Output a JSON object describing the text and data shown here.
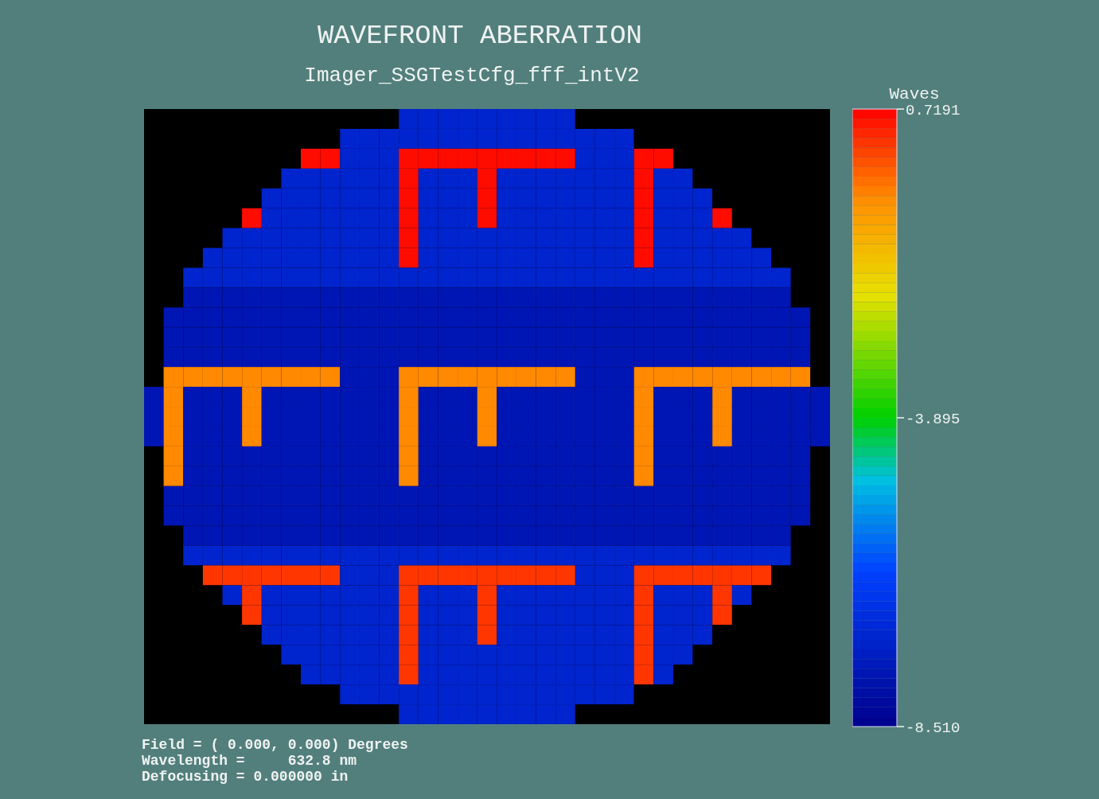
{
  "chart_data": {
    "type": "heatmap",
    "title": "WAVEFRONT ABERRATION",
    "subtitle": "Imager_SSGTestCfg_fff_intV2",
    "clabel": "Waves",
    "annotations": [
      "Field = ( 0.000, 0.000) Degrees",
      "Wavelength =     632.8 nm",
      "Defocusing = 0.000000 in"
    ],
    "clim": [
      -8.51,
      0.7191
    ],
    "cticks": [
      {
        "value": 0.7191,
        "label": "0.7191"
      },
      {
        "value": -3.895,
        "label": "-3.895"
      },
      {
        "value": -8.51,
        "label": "-8.510"
      }
    ],
    "categories": [
      null,
      null,
      null,
      null,
      null,
      null,
      null,
      null,
      null,
      null,
      null,
      null,
      null,
      null,
      null,
      null,
      null,
      null,
      null,
      null,
      null,
      null,
      null,
      null,
      null,
      null,
      null,
      null,
      null,
      null,
      null,
      null,
      null,
      null,
      null
    ],
    "y_categories": [
      null,
      null,
      null,
      null,
      null,
      null,
      null,
      null,
      null,
      null,
      null,
      null,
      null,
      null,
      null,
      null,
      null,
      null,
      null,
      null,
      null,
      null,
      null,
      null,
      null,
      null,
      null,
      null,
      null,
      null,
      null
    ],
    "cells": [
      [
        null,
        null,
        null,
        null,
        null,
        null,
        null,
        null,
        null,
        null,
        null,
        null,
        null,
        -7.2,
        -7.2,
        -7.2,
        -7.2,
        -7.2,
        -7.2,
        -7.2,
        -7.2,
        -7.2,
        null,
        null,
        null,
        null,
        null,
        null,
        null,
        null,
        null,
        null,
        null,
        null,
        null
      ],
      [
        null,
        null,
        null,
        null,
        null,
        null,
        null,
        null,
        null,
        null,
        -7.2,
        -7.2,
        -7.2,
        -7.2,
        -7.2,
        -7.2,
        -7.2,
        -7.2,
        -7.2,
        -7.2,
        -7.2,
        -7.2,
        -7.2,
        -7.2,
        -7.2,
        null,
        null,
        null,
        null,
        null,
        null,
        null,
        null,
        null,
        null
      ],
      [
        null,
        null,
        null,
        null,
        null,
        null,
        null,
        null,
        0.6,
        0.6,
        -7.2,
        -7.2,
        -7.2,
        0.6,
        0.6,
        0.6,
        0.6,
        0.6,
        0.6,
        0.6,
        0.6,
        0.6,
        -7.2,
        -7.2,
        -7.2,
        0.6,
        0.6,
        null,
        null,
        null,
        null,
        null,
        null,
        null,
        null
      ],
      [
        null,
        null,
        null,
        null,
        null,
        null,
        null,
        -7.2,
        -7.2,
        -7.2,
        -7.2,
        -7.2,
        -7.2,
        0.6,
        -7.2,
        -7.2,
        -7.2,
        0.6,
        -7.2,
        -7.2,
        -7.2,
        -7.2,
        -7.2,
        -7.2,
        -7.2,
        0.6,
        -7.2,
        -7.2,
        null,
        null,
        null,
        null,
        null,
        null,
        null
      ],
      [
        null,
        null,
        null,
        null,
        null,
        null,
        -7.2,
        -7.2,
        -7.2,
        -7.2,
        -7.2,
        -7.2,
        -7.2,
        0.6,
        -7.2,
        -7.2,
        -7.2,
        0.6,
        -7.2,
        -7.2,
        -7.2,
        -7.2,
        -7.2,
        -7.2,
        -7.2,
        0.6,
        -7.2,
        -7.2,
        -7.2,
        null,
        null,
        null,
        null,
        null,
        null
      ],
      [
        null,
        null,
        null,
        null,
        null,
        0.6,
        -7.2,
        -7.2,
        -7.2,
        -7.2,
        -7.2,
        -7.2,
        -7.2,
        0.6,
        -7.2,
        -7.2,
        -7.2,
        0.6,
        -7.2,
        -7.2,
        -7.2,
        -7.2,
        -7.2,
        -7.2,
        -7.2,
        0.6,
        -7.2,
        -7.2,
        -7.2,
        0.6,
        null,
        null,
        null,
        null,
        null
      ],
      [
        null,
        null,
        null,
        null,
        -7.2,
        -7.2,
        -7.2,
        -7.2,
        -7.2,
        -7.2,
        -7.2,
        -7.2,
        -7.2,
        0.6,
        -7.2,
        -7.2,
        -7.2,
        -7.2,
        -7.2,
        -7.2,
        -7.2,
        -7.2,
        -7.2,
        -7.2,
        -7.2,
        0.6,
        -7.2,
        -7.2,
        -7.2,
        -7.2,
        -7.2,
        null,
        null,
        null,
        null
      ],
      [
        null,
        null,
        null,
        -7.2,
        -7.2,
        -7.2,
        -7.2,
        -7.2,
        -7.2,
        -7.2,
        -7.2,
        -7.2,
        -7.2,
        0.6,
        -7.2,
        -7.2,
        -7.2,
        -7.2,
        -7.2,
        -7.2,
        -7.2,
        -7.2,
        -7.2,
        -7.2,
        -7.2,
        0.6,
        -7.2,
        -7.2,
        -7.2,
        -7.2,
        -7.2,
        -7.2,
        null,
        null,
        null
      ],
      [
        null,
        null,
        -7.2,
        -7.2,
        -7.2,
        -7.2,
        -7.2,
        -7.2,
        -7.2,
        -7.2,
        -7.2,
        -7.2,
        -7.2,
        -7.2,
        -7.2,
        -7.2,
        -7.2,
        -7.2,
        -7.2,
        -7.2,
        -7.2,
        -7.2,
        -7.2,
        -7.2,
        -7.2,
        -7.2,
        -7.2,
        -7.2,
        -7.2,
        -7.2,
        -7.2,
        -7.2,
        -7.2,
        null,
        null
      ],
      [
        null,
        null,
        -7.7,
        -7.7,
        -7.7,
        -7.7,
        -7.7,
        -7.7,
        -7.7,
        -7.7,
        -7.7,
        -7.7,
        -7.7,
        -7.7,
        -7.7,
        -7.7,
        -7.7,
        -7.7,
        -7.7,
        -7.7,
        -7.7,
        -7.7,
        -7.7,
        -7.7,
        -7.7,
        -7.7,
        -7.7,
        -7.7,
        -7.7,
        -7.7,
        -7.7,
        -7.7,
        -7.7,
        null,
        null
      ],
      [
        null,
        -7.7,
        -7.7,
        -7.7,
        -7.7,
        -7.7,
        -7.7,
        -7.7,
        -7.7,
        -7.7,
        -7.7,
        -7.7,
        -7.7,
        -7.7,
        -7.7,
        -7.7,
        -7.7,
        -7.7,
        -7.7,
        -7.7,
        -7.7,
        -7.7,
        -7.7,
        -7.7,
        -7.7,
        -7.7,
        -7.7,
        -7.7,
        -7.7,
        -7.7,
        -7.7,
        -7.7,
        -7.7,
        -7.7,
        null
      ],
      [
        null,
        -7.7,
        -7.7,
        -7.7,
        -7.7,
        -7.7,
        -7.7,
        -7.7,
        -7.7,
        -7.7,
        -7.7,
        -7.7,
        -7.7,
        -7.7,
        -7.7,
        -7.7,
        -7.7,
        -7.7,
        -7.7,
        -7.7,
        -7.7,
        -7.7,
        -7.7,
        -7.7,
        -7.7,
        -7.7,
        -7.7,
        -7.7,
        -7.7,
        -7.7,
        -7.7,
        -7.7,
        -7.7,
        -7.7,
        null
      ],
      [
        null,
        -7.7,
        -7.7,
        -7.7,
        -7.7,
        -7.7,
        -7.7,
        -7.7,
        -7.7,
        -7.7,
        -7.7,
        -7.7,
        -7.7,
        -7.7,
        -7.7,
        -7.7,
        -7.7,
        -7.7,
        -7.7,
        -7.7,
        -7.7,
        -7.7,
        -7.7,
        -7.7,
        -7.7,
        -7.7,
        -7.7,
        -7.7,
        -7.7,
        -7.7,
        -7.7,
        -7.7,
        -7.7,
        -7.7,
        null
      ],
      [
        null,
        -0.6,
        -0.6,
        -0.6,
        -0.6,
        -0.6,
        -0.6,
        -0.6,
        -0.6,
        -0.6,
        -7.7,
        -7.7,
        -7.7,
        -0.6,
        -0.6,
        -0.6,
        -0.6,
        -0.6,
        -0.6,
        -0.6,
        -0.6,
        -0.6,
        -7.7,
        -7.7,
        -7.7,
        -0.6,
        -0.6,
        -0.6,
        -0.6,
        -0.6,
        -0.6,
        -0.6,
        -0.6,
        -0.6,
        null
      ],
      [
        -7.7,
        -0.6,
        -7.7,
        -7.7,
        -7.7,
        -0.6,
        -7.7,
        -7.7,
        -7.7,
        -7.7,
        -7.7,
        -7.7,
        -7.7,
        -0.6,
        -7.7,
        -7.7,
        -7.7,
        -0.6,
        -7.7,
        -7.7,
        -7.7,
        -7.7,
        -7.7,
        -7.7,
        -7.7,
        -0.6,
        -7.7,
        -7.7,
        -7.7,
        -0.6,
        -7.7,
        -7.7,
        -7.7,
        -7.7,
        -7.7
      ],
      [
        -7.7,
        -0.6,
        -7.7,
        -7.7,
        -7.7,
        -0.6,
        -7.7,
        -7.7,
        -7.7,
        -7.7,
        -7.7,
        -7.7,
        -7.7,
        -0.6,
        -7.7,
        -7.7,
        -7.7,
        -0.6,
        -7.7,
        -7.7,
        -7.7,
        -7.7,
        -7.7,
        -7.7,
        -7.7,
        -0.6,
        -7.7,
        -7.7,
        -7.7,
        -0.6,
        -7.7,
        -7.7,
        -7.7,
        -7.7,
        -7.7
      ],
      [
        -7.7,
        -0.6,
        -7.7,
        -7.7,
        -7.7,
        -0.6,
        -7.7,
        -7.7,
        -7.7,
        -7.7,
        -7.7,
        -7.7,
        -7.7,
        -0.6,
        -7.7,
        -7.7,
        -7.7,
        -0.6,
        -7.7,
        -7.7,
        -7.7,
        -7.7,
        -7.7,
        -7.7,
        -7.7,
        -0.6,
        -7.7,
        -7.7,
        -7.7,
        -0.6,
        -7.7,
        -7.7,
        -7.7,
        -7.7,
        -7.7
      ],
      [
        null,
        -0.6,
        -7.7,
        -7.7,
        -7.7,
        -7.7,
        -7.7,
        -7.7,
        -7.7,
        -7.7,
        -7.7,
        -7.7,
        -7.7,
        -0.6,
        -7.7,
        -7.7,
        -7.7,
        -7.7,
        -7.7,
        -7.7,
        -7.7,
        -7.7,
        -7.7,
        -7.7,
        -7.7,
        -0.6,
        -7.7,
        -7.7,
        -7.7,
        -7.7,
        -7.7,
        -7.7,
        -7.7,
        -7.7,
        null
      ],
      [
        null,
        -0.6,
        -7.7,
        -7.7,
        -7.7,
        -7.7,
        -7.7,
        -7.7,
        -7.7,
        -7.7,
        -7.7,
        -7.7,
        -7.7,
        -0.6,
        -7.7,
        -7.7,
        -7.7,
        -7.7,
        -7.7,
        -7.7,
        -7.7,
        -7.7,
        -7.7,
        -7.7,
        -7.7,
        -0.6,
        -7.7,
        -7.7,
        -7.7,
        -7.7,
        -7.7,
        -7.7,
        -7.7,
        -7.7,
        null
      ],
      [
        null,
        -7.7,
        -7.7,
        -7.7,
        -7.7,
        -7.7,
        -7.7,
        -7.7,
        -7.7,
        -7.7,
        -7.7,
        -7.7,
        -7.7,
        -7.7,
        -7.7,
        -7.7,
        -7.7,
        -7.7,
        -7.7,
        -7.7,
        -7.7,
        -7.7,
        -7.7,
        -7.7,
        -7.7,
        -7.7,
        -7.7,
        -7.7,
        -7.7,
        -7.7,
        -7.7,
        -7.7,
        -7.7,
        -7.7,
        null
      ],
      [
        null,
        -7.7,
        -7.7,
        -7.7,
        -7.7,
        -7.7,
        -7.7,
        -7.7,
        -7.7,
        -7.7,
        -7.7,
        -7.7,
        -7.7,
        -7.7,
        -7.7,
        -7.7,
        -7.7,
        -7.7,
        -7.7,
        -7.7,
        -7.7,
        -7.7,
        -7.7,
        -7.7,
        -7.7,
        -7.7,
        -7.7,
        -7.7,
        -7.7,
        -7.7,
        -7.7,
        -7.7,
        -7.7,
        -7.7,
        null
      ],
      [
        null,
        null,
        -7.7,
        -7.7,
        -7.7,
        -7.7,
        -7.7,
        -7.7,
        -7.7,
        -7.7,
        -7.7,
        -7.7,
        -7.7,
        -7.7,
        -7.7,
        -7.7,
        -7.7,
        -7.7,
        -7.7,
        -7.7,
        -7.7,
        -7.7,
        -7.7,
        -7.7,
        -7.7,
        -7.7,
        -7.7,
        -7.7,
        -7.7,
        -7.7,
        -7.7,
        -7.7,
        -7.7,
        null,
        null
      ],
      [
        null,
        null,
        -7.2,
        -7.2,
        -7.2,
        -7.2,
        -7.2,
        -7.2,
        -7.2,
        -7.2,
        -7.2,
        -7.2,
        -7.2,
        -7.2,
        -7.2,
        -7.2,
        -7.2,
        -7.2,
        -7.2,
        -7.2,
        -7.2,
        -7.2,
        -7.2,
        -7.2,
        -7.2,
        -7.2,
        -7.2,
        -7.2,
        -7.2,
        -7.2,
        -7.2,
        -7.2,
        -7.2,
        null,
        null
      ],
      [
        null,
        null,
        null,
        0.2,
        0.2,
        0.2,
        0.2,
        0.2,
        0.2,
        0.2,
        -7.2,
        -7.2,
        -7.2,
        0.2,
        0.2,
        0.2,
        0.2,
        0.2,
        0.2,
        0.2,
        0.2,
        0.2,
        -7.2,
        -7.2,
        -7.2,
        0.2,
        0.2,
        0.2,
        0.2,
        0.2,
        0.2,
        0.2,
        null,
        null,
        null
      ],
      [
        null,
        null,
        null,
        null,
        -7.2,
        0.2,
        -7.2,
        -7.2,
        -7.2,
        -7.2,
        -7.2,
        -7.2,
        -7.2,
        0.2,
        -7.2,
        -7.2,
        -7.2,
        0.2,
        -7.2,
        -7.2,
        -7.2,
        -7.2,
        -7.2,
        -7.2,
        -7.2,
        0.2,
        -7.2,
        -7.2,
        -7.2,
        0.2,
        -7.2,
        null,
        null,
        null,
        null
      ],
      [
        null,
        null,
        null,
        null,
        null,
        0.2,
        -7.2,
        -7.2,
        -7.2,
        -7.2,
        -7.2,
        -7.2,
        -7.2,
        0.2,
        -7.2,
        -7.2,
        -7.2,
        0.2,
        -7.2,
        -7.2,
        -7.2,
        -7.2,
        -7.2,
        -7.2,
        -7.2,
        0.2,
        -7.2,
        -7.2,
        -7.2,
        0.2,
        null,
        null,
        null,
        null,
        null
      ],
      [
        null,
        null,
        null,
        null,
        null,
        null,
        -7.2,
        -7.2,
        -7.2,
        -7.2,
        -7.2,
        -7.2,
        -7.2,
        0.2,
        -7.2,
        -7.2,
        -7.2,
        0.2,
        -7.2,
        -7.2,
        -7.2,
        -7.2,
        -7.2,
        -7.2,
        -7.2,
        0.2,
        -7.2,
        -7.2,
        -7.2,
        null,
        null,
        null,
        null,
        null,
        null
      ],
      [
        null,
        null,
        null,
        null,
        null,
        null,
        null,
        -7.2,
        -7.2,
        -7.2,
        -7.2,
        -7.2,
        -7.2,
        0.2,
        -7.2,
        -7.2,
        -7.2,
        -7.2,
        -7.2,
        -7.2,
        -7.2,
        -7.2,
        -7.2,
        -7.2,
        -7.2,
        0.2,
        -7.2,
        -7.2,
        null,
        null,
        null,
        null,
        null,
        null,
        null
      ],
      [
        null,
        null,
        null,
        null,
        null,
        null,
        null,
        null,
        -7.2,
        -7.2,
        -7.2,
        -7.2,
        -7.2,
        0.2,
        -7.2,
        -7.2,
        -7.2,
        -7.2,
        -7.2,
        -7.2,
        -7.2,
        -7.2,
        -7.2,
        -7.2,
        -7.2,
        0.2,
        -7.2,
        null,
        null,
        null,
        null,
        null,
        null,
        null,
        null
      ],
      [
        null,
        null,
        null,
        null,
        null,
        null,
        null,
        null,
        null,
        null,
        -7.2,
        -7.2,
        -7.2,
        -7.2,
        -7.2,
        -7.2,
        -7.2,
        -7.2,
        -7.2,
        -7.2,
        -7.2,
        -7.2,
        -7.2,
        -7.2,
        -7.2,
        null,
        null,
        null,
        null,
        null,
        null,
        null,
        null,
        null,
        null
      ],
      [
        null,
        null,
        null,
        null,
        null,
        null,
        null,
        null,
        null,
        null,
        null,
        null,
        null,
        -7.2,
        -7.2,
        -7.2,
        -7.2,
        -7.2,
        -7.2,
        -7.2,
        -7.2,
        -7.2,
        null,
        null,
        null,
        null,
        null,
        null,
        null,
        null,
        null,
        null,
        null,
        null,
        null
      ]
    ]
  }
}
